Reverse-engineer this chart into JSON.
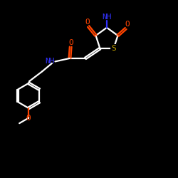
{
  "background_color": "#000000",
  "bond_color": "#ffffff",
  "atom_colors": {
    "O": "#ff4400",
    "N": "#3333ff",
    "S": "#ccaa00",
    "C": "#ffffff"
  },
  "figsize": [
    2.5,
    2.5
  ],
  "dpi": 100,
  "xlim": [
    0,
    10
  ],
  "ylim": [
    0,
    10
  ]
}
